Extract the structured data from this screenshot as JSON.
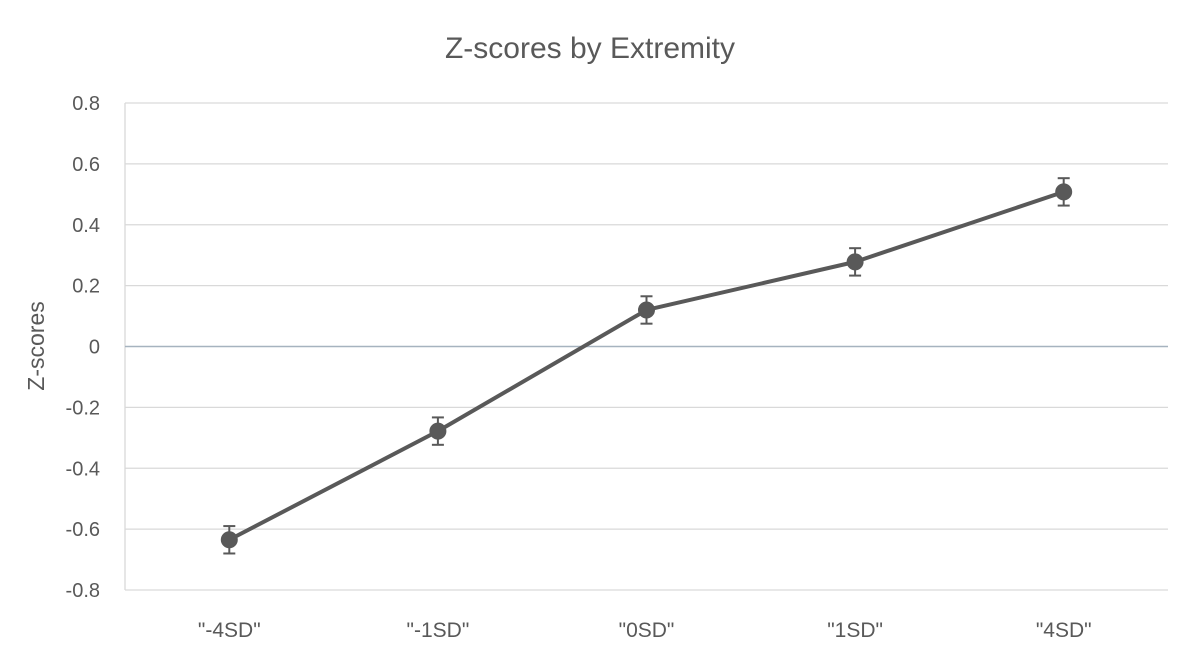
{
  "chart_data": {
    "type": "line",
    "title": "Z-scores by Extremity",
    "xlabel": "",
    "ylabel": "Z-scores",
    "categories": [
      "\"-4SD\"",
      "\"-1SD\"",
      "\"0SD\"",
      "\"1SD\"",
      "\"4SD\""
    ],
    "series": [
      {
        "values": [
          -0.635,
          -0.278,
          0.12,
          0.278,
          0.508
        ],
        "error": [
          0.045,
          0.045,
          0.045,
          0.045,
          0.045
        ]
      }
    ],
    "ylim": [
      -0.8,
      0.8
    ],
    "yticks": [
      -0.8,
      -0.6,
      -0.4,
      -0.2,
      0,
      0.2,
      0.4,
      0.6,
      0.8
    ],
    "ytick_labels": [
      "-0.8",
      "-0.6",
      "-0.4",
      "-0.2",
      "0",
      "0.2",
      "0.4",
      "0.6",
      "0.8"
    ],
    "grid": true,
    "legend": "none",
    "colors": {
      "series": "#595959",
      "grid": "#d9d9d9",
      "zero_line": "#a6b3bf",
      "text": "#595959"
    }
  }
}
